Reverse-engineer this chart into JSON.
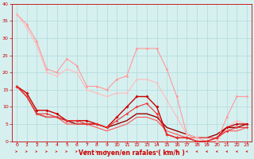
{
  "xlabel": "Vent moyen/en rafales ( km/h )",
  "xlim": [
    -0.5,
    23.5
  ],
  "ylim": [
    0,
    40
  ],
  "yticks": [
    0,
    5,
    10,
    15,
    20,
    25,
    30,
    35,
    40
  ],
  "xticks": [
    0,
    1,
    2,
    3,
    4,
    5,
    6,
    7,
    8,
    9,
    10,
    11,
    12,
    13,
    14,
    15,
    16,
    17,
    18,
    19,
    20,
    21,
    22,
    23
  ],
  "bg_color": "#d6f0f0",
  "grid_color": "#b0d8d8",
  "lines": [
    {
      "x": [
        0,
        1,
        2,
        3,
        4,
        5,
        6,
        7,
        8,
        9,
        10,
        11,
        12,
        13,
        14,
        15,
        16,
        17,
        18,
        19,
        20,
        21,
        22,
        23
      ],
      "y": [
        37,
        34,
        29,
        21,
        20,
        24,
        22,
        16,
        16,
        15,
        18,
        19,
        27,
        27,
        27,
        21,
        13,
        2,
        1,
        0,
        0,
        7,
        13,
        13
      ],
      "color": "#ff9999",
      "lw": 0.8,
      "marker": "D",
      "ms": 1.8
    },
    {
      "x": [
        0,
        1,
        2,
        3,
        4,
        5,
        6,
        7,
        8,
        9,
        10,
        11,
        12,
        13,
        14,
        15,
        16,
        17,
        18,
        19,
        20,
        21,
        22,
        23
      ],
      "y": [
        37,
        33,
        28,
        20,
        19,
        21,
        20,
        15,
        14,
        13,
        14,
        14,
        18,
        18,
        17,
        12,
        7,
        2,
        1,
        0,
        0,
        4,
        6,
        5
      ],
      "color": "#ffbbbb",
      "lw": 0.8,
      "marker": "D",
      "ms": 1.5
    },
    {
      "x": [
        0,
        1,
        2,
        3,
        4,
        5,
        6,
        7,
        8,
        9,
        10,
        11,
        12,
        13,
        14,
        15,
        16,
        17,
        18,
        19,
        20,
        21,
        22,
        23
      ],
      "y": [
        16,
        14,
        9,
        9,
        8,
        6,
        6,
        6,
        5,
        4,
        7,
        10,
        13,
        13,
        10,
        2,
        1,
        1,
        0,
        0,
        1,
        4,
        5,
        5
      ],
      "color": "#cc0000",
      "lw": 1.0,
      "marker": "D",
      "ms": 2.0
    },
    {
      "x": [
        0,
        1,
        2,
        3,
        4,
        5,
        6,
        7,
        8,
        9,
        10,
        11,
        12,
        13,
        14,
        15,
        16,
        17,
        18,
        19,
        20,
        21,
        22,
        23
      ],
      "y": [
        16,
        13,
        8,
        8,
        7,
        6,
        6,
        5,
        5,
        4,
        6,
        8,
        10,
        11,
        8,
        2,
        1,
        1,
        0,
        0,
        1,
        3,
        4,
        4
      ],
      "color": "#ee3333",
      "lw": 0.8,
      "marker": "D",
      "ms": 1.8
    },
    {
      "x": [
        0,
        1,
        2,
        3,
        4,
        5,
        6,
        7,
        8,
        9,
        10,
        11,
        12,
        13,
        14,
        15,
        16,
        17,
        18,
        19,
        20,
        21,
        22,
        23
      ],
      "y": [
        16,
        13,
        8,
        7,
        7,
        6,
        5,
        5,
        5,
        4,
        5,
        6,
        8,
        8,
        7,
        4,
        3,
        2,
        1,
        1,
        2,
        4,
        4,
        5
      ],
      "color": "#990000",
      "lw": 1.0,
      "marker": null,
      "ms": 0
    },
    {
      "x": [
        0,
        1,
        2,
        3,
        4,
        5,
        6,
        7,
        8,
        9,
        10,
        11,
        12,
        13,
        14,
        15,
        16,
        17,
        18,
        19,
        20,
        21,
        22,
        23
      ],
      "y": [
        16,
        13,
        8,
        7,
        7,
        5,
        5,
        5,
        4,
        3,
        4,
        5,
        7,
        7,
        6,
        3,
        2,
        1,
        1,
        1,
        1,
        3,
        3,
        4
      ],
      "color": "#ff5555",
      "lw": 0.8,
      "marker": null,
      "ms": 0
    }
  ],
  "arrows_x": [
    0,
    1,
    2,
    3,
    4,
    5,
    6,
    7,
    8,
    9,
    10,
    11,
    12,
    13,
    14,
    15,
    16,
    17,
    18,
    19,
    20,
    21,
    22,
    23
  ],
  "arrow_angles": [
    45,
    45,
    45,
    45,
    45,
    45,
    45,
    45,
    45,
    45,
    90,
    90,
    90,
    90,
    135,
    135,
    180,
    180,
    180,
    180,
    180,
    180,
    180,
    180
  ]
}
